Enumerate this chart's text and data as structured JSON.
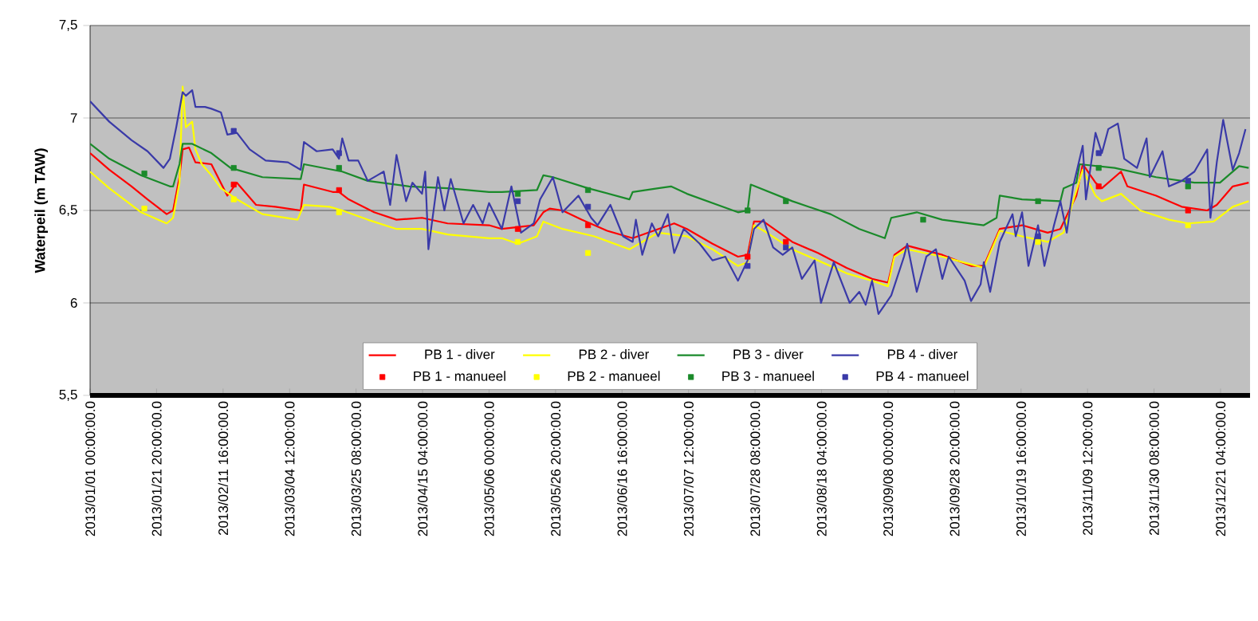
{
  "chart_data": {
    "type": "line",
    "ylabel": "Waterpeil (m TAW)",
    "xlim": [
      "2013-01-01T00:00",
      "2013-12-30T10:00"
    ],
    "ylim": [
      5.5,
      7.5
    ],
    "xticks": [
      {
        "value": "2013-01-01T00:00",
        "label": "2013/01/01  00:00:00.0"
      },
      {
        "value": "2013-01-21T20:00",
        "label": "2013/01/21 20:00:00.0"
      },
      {
        "value": "2013-02-11T16:00",
        "label": "2013/02/11 16:00:00.0"
      },
      {
        "value": "2013-03-04T12:00",
        "label": "2013/03/04 12:00:00.0"
      },
      {
        "value": "2013-03-25T08:00",
        "label": "2013/03/25 08:00:00.0"
      },
      {
        "value": "2013-04-15T04:00",
        "label": "2013/04/15 04:00:00.0"
      },
      {
        "value": "2013-05-06T00:00",
        "label": "2013/05/06 00:00:00.0"
      },
      {
        "value": "2013-05-26T20:00",
        "label": "2013/05/26 20:00:00.0"
      },
      {
        "value": "2013-06-16T16:00",
        "label": "2013/06/16 16:00:00.0"
      },
      {
        "value": "2013-07-07T12:00",
        "label": "2013/07/07 12:00:00.0"
      },
      {
        "value": "2013-07-28T08:00",
        "label": "2013/07/28 08:00:00.0"
      },
      {
        "value": "2013-08-18T04:00",
        "label": "2013/08/18 04:00:00.0"
      },
      {
        "value": "2013-09-08T00:00",
        "label": "2013/09/08 00:00:00.0"
      },
      {
        "value": "2013-09-28T20:00",
        "label": "2013/09/28 20:00:00.0"
      },
      {
        "value": "2013-10-19T16:00",
        "label": "2013/10/19 16:00:00.0"
      },
      {
        "value": "2013-11-09T12:00",
        "label": "2013/11/09 12:00:00.0"
      },
      {
        "value": "2013-11-30T08:00",
        "label": "2013/11/30 08:00:00.0"
      },
      {
        "value": "2013-12-21T04:00",
        "label": "2013/12/21 04:00:00.0"
      }
    ],
    "yticks": [
      {
        "value": 7.5,
        "label": "7,5"
      },
      7,
      {
        "value": 6.5,
        "label": "6,5"
      },
      6,
      {
        "value": 5.5,
        "label": "5,5"
      }
    ],
    "grid": "y",
    "legend": "bottom",
    "series": [
      {
        "name": "PB 1 - diver",
        "color": "#ff0000",
        "marker": "none",
        "x": [
          "2013-01-01",
          "2013-01-07",
          "2013-01-14",
          "2013-01-19",
          "2013-01-25",
          "2013-01-27",
          "2013-01-29",
          "2013-01-30",
          "2013-02-01",
          "2013-02-03",
          "2013-02-08",
          "2013-02-13",
          "2013-02-16",
          "2013-02-22",
          "2013-02-28",
          "2013-03-08",
          "2013-03-09",
          "2013-03-18",
          "2013-03-20",
          "2013-03-23",
          "2013-03-31",
          "2013-04-07",
          "2013-04-15",
          "2013-04-23",
          "2013-05-06",
          "2013-05-10",
          "2013-05-20",
          "2013-05-23",
          "2013-05-25",
          "2013-05-29",
          "2013-06-04",
          "2013-06-12",
          "2013-06-20",
          "2013-07-03",
          "2013-07-07",
          "2013-07-15",
          "2013-07-23",
          "2013-07-26",
          "2013-07-28",
          "2013-07-31",
          "2013-08-09",
          "2013-08-17",
          "2013-08-26",
          "2013-09-03",
          "2013-09-08",
          "2013-09-10",
          "2013-09-14",
          "2013-09-25",
          "2013-10-04",
          "2013-10-08",
          "2013-10-13",
          "2013-10-20",
          "2013-10-28",
          "2013-11-01",
          "2013-11-06",
          "2013-11-08",
          "2013-11-12",
          "2013-11-14",
          "2013-11-20",
          "2013-11-22",
          "2013-12-01",
          "2013-12-09",
          "2013-12-17",
          "2013-12-20",
          "2013-12-25",
          "2013-12-30"
        ],
        "values": [
          6.81,
          6.72,
          6.63,
          6.56,
          6.48,
          6.5,
          6.68,
          6.83,
          6.84,
          6.76,
          6.75,
          6.58,
          6.65,
          6.53,
          6.52,
          6.5,
          6.64,
          6.6,
          6.6,
          6.56,
          6.49,
          6.45,
          6.46,
          6.43,
          6.42,
          6.4,
          6.42,
          6.49,
          6.51,
          6.5,
          6.45,
          6.39,
          6.35,
          6.43,
          6.4,
          6.32,
          6.25,
          6.26,
          6.44,
          6.44,
          6.33,
          6.27,
          6.19,
          6.13,
          6.11,
          6.26,
          6.31,
          6.26,
          6.2,
          6.2,
          6.4,
          6.42,
          6.38,
          6.4,
          6.58,
          6.75,
          6.65,
          6.62,
          6.71,
          6.63,
          6.58,
          6.52,
          6.5,
          6.53,
          6.63,
          6.65
        ]
      },
      {
        "name": "PB 2 - diver",
        "color": "#ffff00",
        "marker": "none",
        "x": [
          "2013-01-01",
          "2013-01-07",
          "2013-01-17",
          "2013-01-25",
          "2013-01-27",
          "2013-01-29",
          "2013-01-30",
          "2013-01-31",
          "2013-02-02",
          "2013-02-03",
          "2013-02-05",
          "2013-02-08",
          "2013-02-11",
          "2013-02-16",
          "2013-02-24",
          "2013-03-07",
          "2013-03-09",
          "2013-03-17",
          "2013-03-21",
          "2013-03-29",
          "2013-04-07",
          "2013-04-15",
          "2013-04-23",
          "2013-05-06",
          "2013-05-10",
          "2013-05-15",
          "2013-05-21",
          "2013-05-23",
          "2013-05-29",
          "2013-06-08",
          "2013-06-19",
          "2013-06-28",
          "2013-07-07",
          "2013-07-15",
          "2013-07-23",
          "2013-07-26",
          "2013-07-28",
          "2013-08-01",
          "2013-08-09",
          "2013-08-17",
          "2013-08-26",
          "2013-09-03",
          "2013-09-08",
          "2013-09-10",
          "2013-09-14",
          "2013-09-25",
          "2013-10-08",
          "2013-10-13",
          "2013-10-20",
          "2013-10-28",
          "2013-11-02",
          "2013-11-08",
          "2013-11-12",
          "2013-11-14",
          "2013-11-20",
          "2013-11-26",
          "2013-12-05",
          "2013-12-11",
          "2013-12-19",
          "2013-12-25",
          "2013-12-30"
        ],
        "values": [
          6.71,
          6.62,
          6.49,
          6.43,
          6.46,
          6.65,
          7.17,
          6.95,
          6.98,
          6.83,
          6.75,
          6.69,
          6.62,
          6.56,
          6.48,
          6.45,
          6.53,
          6.52,
          6.5,
          6.45,
          6.4,
          6.4,
          6.37,
          6.35,
          6.35,
          6.32,
          6.36,
          6.44,
          6.4,
          6.36,
          6.29,
          6.38,
          6.36,
          6.29,
          6.2,
          6.22,
          6.42,
          6.38,
          6.29,
          6.23,
          6.16,
          6.12,
          6.09,
          6.25,
          6.29,
          6.25,
          6.19,
          6.39,
          6.36,
          6.33,
          6.38,
          6.72,
          6.58,
          6.55,
          6.59,
          6.5,
          6.45,
          6.43,
          6.44,
          6.52,
          6.55
        ]
      },
      {
        "name": "PB 3 - diver",
        "color": "#1a8a2a",
        "marker": "none",
        "x": [
          "2013-01-01",
          "2013-01-07",
          "2013-01-17",
          "2013-01-26",
          "2013-01-27",
          "2013-01-29",
          "2013-01-30",
          "2013-02-02",
          "2013-02-08",
          "2013-02-14",
          "2013-02-24",
          "2013-03-08",
          "2013-03-09",
          "2013-03-21",
          "2013-03-29",
          "2013-04-11",
          "2013-04-23",
          "2013-05-06",
          "2013-05-10",
          "2013-05-21",
          "2013-05-23",
          "2013-05-26",
          "2013-06-06",
          "2013-06-19",
          "2013-06-20",
          "2013-06-28",
          "2013-07-02",
          "2013-07-07",
          "2013-07-23",
          "2013-07-26",
          "2013-07-27",
          "2013-08-09",
          "2013-08-21",
          "2013-08-30",
          "2013-09-07",
          "2013-09-09",
          "2013-09-17",
          "2013-09-25",
          "2013-10-08",
          "2013-10-12",
          "2013-10-13",
          "2013-10-20",
          "2013-11-01",
          "2013-11-02",
          "2013-11-06",
          "2013-11-07",
          "2013-11-18",
          "2013-12-01",
          "2013-12-13",
          "2013-12-21",
          "2013-12-27",
          "2013-12-30"
        ],
        "values": [
          6.86,
          6.78,
          6.69,
          6.63,
          6.63,
          6.75,
          6.86,
          6.86,
          6.81,
          6.73,
          6.68,
          6.67,
          6.75,
          6.71,
          6.66,
          6.63,
          6.62,
          6.6,
          6.6,
          6.61,
          6.69,
          6.68,
          6.62,
          6.56,
          6.6,
          6.62,
          6.63,
          6.59,
          6.49,
          6.5,
          6.64,
          6.55,
          6.48,
          6.4,
          6.35,
          6.46,
          6.49,
          6.45,
          6.42,
          6.46,
          6.58,
          6.56,
          6.55,
          6.62,
          6.65,
          6.75,
          6.73,
          6.68,
          6.65,
          6.65,
          6.74,
          6.73
        ]
      },
      {
        "name": "PB 4 - diver",
        "color": "#3a3aa8",
        "marker": "none",
        "x": [
          "2013-01-01",
          "2013-01-07",
          "2013-01-14",
          "2013-01-19",
          "2013-01-24",
          "2013-01-26",
          "2013-01-28",
          "2013-01-30",
          "2013-01-31",
          "2013-02-02",
          "2013-02-03",
          "2013-02-06",
          "2013-02-08",
          "2013-02-11",
          "2013-02-13",
          "2013-02-16",
          "2013-02-20",
          "2013-02-25",
          "2013-03-04",
          "2013-03-08",
          "2013-03-09",
          "2013-03-13",
          "2013-03-18",
          "2013-03-20",
          "2013-03-21",
          "2013-03-23",
          "2013-03-26",
          "2013-03-29",
          "2013-04-01",
          "2013-04-03",
          "2013-04-05",
          "2013-04-07",
          "2013-04-10",
          "2013-04-12",
          "2013-04-15",
          "2013-04-16",
          "2013-04-17",
          "2013-04-20",
          "2013-04-22",
          "2013-04-24",
          "2013-04-28",
          "2013-05-01",
          "2013-05-04",
          "2013-05-06",
          "2013-05-10",
          "2013-05-13",
          "2013-05-16",
          "2013-05-20",
          "2013-05-22",
          "2013-05-26",
          "2013-05-29",
          "2013-06-03",
          "2013-06-07",
          "2013-06-09",
          "2013-06-13",
          "2013-06-17",
          "2013-06-20",
          "2013-06-21",
          "2013-06-23",
          "2013-06-26",
          "2013-06-28",
          "2013-07-01",
          "2013-07-03",
          "2013-07-06",
          "2013-07-11",
          "2013-07-15",
          "2013-07-19",
          "2013-07-23",
          "2013-07-26",
          "2013-07-28",
          "2013-07-31",
          "2013-08-03",
          "2013-08-06",
          "2013-08-09",
          "2013-08-12",
          "2013-08-16",
          "2013-08-18",
          "2013-08-22",
          "2013-08-27",
          "2013-08-30",
          "2013-09-01",
          "2013-09-03",
          "2013-09-05",
          "2013-09-09",
          "2013-09-13",
          "2013-09-14",
          "2013-09-17",
          "2013-09-20",
          "2013-09-23",
          "2013-09-25",
          "2013-09-27",
          "2013-10-02",
          "2013-10-04",
          "2013-10-07",
          "2013-10-08",
          "2013-10-10",
          "2013-10-13",
          "2013-10-17",
          "2013-10-18",
          "2013-10-20",
          "2013-10-22",
          "2013-10-25",
          "2013-10-27",
          "2013-10-30",
          "2013-11-01",
          "2013-11-03",
          "2013-11-05",
          "2013-11-08",
          "2013-11-09",
          "2013-11-12",
          "2013-11-14",
          "2013-11-16",
          "2013-11-19",
          "2013-11-21",
          "2013-11-25",
          "2013-11-28",
          "2013-11-29",
          "2013-12-03",
          "2013-12-05",
          "2013-12-09",
          "2013-12-13",
          "2013-12-17",
          "2013-12-18",
          "2013-12-20",
          "2013-12-22",
          "2013-12-25",
          "2013-12-27",
          "2013-12-29"
        ],
        "values": [
          7.09,
          6.98,
          6.88,
          6.82,
          6.73,
          6.78,
          6.95,
          7.14,
          7.12,
          7.15,
          7.06,
          7.06,
          7.05,
          7.03,
          6.91,
          6.92,
          6.83,
          6.77,
          6.76,
          6.72,
          6.87,
          6.82,
          6.83,
          6.78,
          6.89,
          6.77,
          6.77,
          6.66,
          6.69,
          6.71,
          6.53,
          6.8,
          6.55,
          6.65,
          6.59,
          6.71,
          6.29,
          6.68,
          6.5,
          6.67,
          6.43,
          6.53,
          6.43,
          6.54,
          6.4,
          6.63,
          6.38,
          6.43,
          6.56,
          6.68,
          6.49,
          6.58,
          6.46,
          6.42,
          6.53,
          6.36,
          6.33,
          6.45,
          6.26,
          6.43,
          6.36,
          6.48,
          6.27,
          6.4,
          6.32,
          6.23,
          6.25,
          6.12,
          6.23,
          6.4,
          6.45,
          6.3,
          6.26,
          6.3,
          6.13,
          6.23,
          6.0,
          6.22,
          6.0,
          6.06,
          5.99,
          6.12,
          5.94,
          6.04,
          6.25,
          6.32,
          6.06,
          6.25,
          6.29,
          6.13,
          6.25,
          6.12,
          6.01,
          6.1,
          6.22,
          6.06,
          6.33,
          6.48,
          6.36,
          6.49,
          6.2,
          6.42,
          6.2,
          6.42,
          6.55,
          6.38,
          6.63,
          6.85,
          6.56,
          6.92,
          6.81,
          6.94,
          6.97,
          6.78,
          6.73,
          6.89,
          6.68,
          6.82,
          6.63,
          6.66,
          6.71,
          6.83,
          6.46,
          6.76,
          6.99,
          6.72,
          6.81,
          6.94
        ]
      },
      {
        "name": "PB 1 - manueel",
        "type": "scatter",
        "marker": "square",
        "color": "#ff0000",
        "x": [
          "2013-02-15",
          "2013-03-20",
          "2013-05-15",
          "2013-06-06",
          "2013-07-26",
          "2013-08-07",
          "2013-10-25",
          "2013-11-13",
          "2013-12-11"
        ],
        "values": [
          6.64,
          6.61,
          6.4,
          6.42,
          6.25,
          6.33,
          null,
          6.63,
          6.5
        ]
      },
      {
        "name": "PB 2 - manueel",
        "type": "scatter",
        "marker": "square",
        "color": "#ffff00",
        "x": [
          "2013-01-18",
          "2013-02-15",
          "2013-03-20",
          "2013-05-15",
          "2013-06-06",
          "2013-07-26",
          "2013-10-25",
          "2013-12-11"
        ],
        "values": [
          6.51,
          6.56,
          6.49,
          6.33,
          6.27,
          null,
          6.33,
          6.42
        ]
      },
      {
        "name": "PB 3 - manueel",
        "type": "scatter",
        "marker": "square",
        "color": "#1a8a2a",
        "x": [
          "2013-01-18",
          "2013-02-15",
          "2013-03-20",
          "2013-05-15",
          "2013-06-06",
          "2013-07-26",
          "2013-08-07",
          "2013-09-19",
          "2013-10-25",
          "2013-11-13",
          "2013-12-11"
        ],
        "values": [
          6.7,
          6.73,
          6.73,
          6.59,
          6.61,
          6.5,
          6.55,
          6.45,
          6.55,
          6.73,
          6.63
        ]
      },
      {
        "name": "PB 4 - manueel",
        "type": "scatter",
        "marker": "square",
        "color": "#3a3aa8",
        "x": [
          "2013-02-15",
          "2013-03-20",
          "2013-05-15",
          "2013-06-06",
          "2013-07-26",
          "2013-08-07",
          "2013-10-25",
          "2013-11-13",
          "2013-12-11"
        ],
        "values": [
          6.93,
          6.81,
          6.55,
          6.52,
          6.2,
          6.3,
          6.36,
          6.81,
          6.66
        ]
      }
    ]
  }
}
